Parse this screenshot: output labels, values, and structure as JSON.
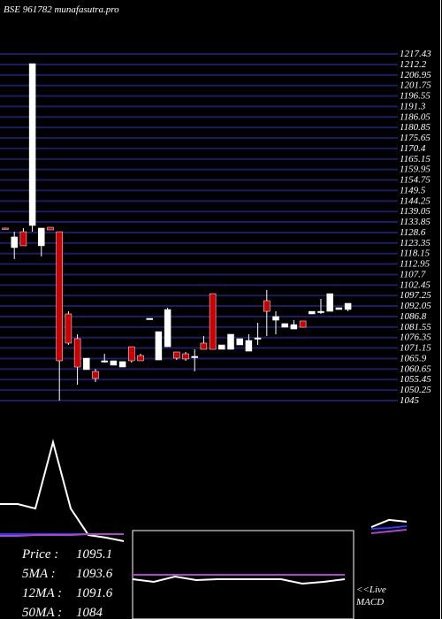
{
  "chart_data": {
    "type": "candlestick",
    "title": "BSE 961782 munafasutra.pro",
    "ylim": [
      1045,
      1217.43
    ],
    "yticks": [
      1045,
      1050.25,
      1055.45,
      1060.65,
      1065.9,
      1071.15,
      1076.35,
      1081.55,
      1086.8,
      1092.05,
      1097.25,
      1102.45,
      1107.7,
      1112.95,
      1118.15,
      1123.35,
      1128.6,
      1133.85,
      1139.05,
      1144.25,
      1149.5,
      1154.75,
      1159.95,
      1165.15,
      1170.4,
      1175.65,
      1180.85,
      1186.05,
      1191.3,
      1196.55,
      1201.75,
      1206.95,
      1212.2,
      1217.43
    ],
    "grid": true,
    "grid_color": "#1c1c66",
    "up_color": "#ffffff",
    "down_color": "#cc0000",
    "open": [
      1130.8,
      1121.1,
      1129,
      1132.1,
      1122,
      1131.2,
      1129,
      1088.1,
      1075.8,
      1060.4,
      1059.5,
      1064.8,
      1062.6,
      1061.7,
      1071.8,
      1067.4,
      1085.9,
      1065.2,
      1071.8,
      1069.2,
      1068.3,
      1067,
      1073.6,
      1098.2,
      1070.5,
      1070.5,
      1072.7,
      1069.6,
      1076.2,
      1094.7,
      1085,
      1081.5,
      1080.6,
      1084.6,
      1088.1,
      1089.4,
      1089.4,
      1090.3,
      1090.3
    ],
    "high": [
      1131,
      1129,
      1130.8,
      1212.6,
      1130.8,
      1131.2,
      1129,
      1089.4,
      1078,
      1066.1,
      1060.8,
      1068.3,
      1064.8,
      1064.4,
      1071.8,
      1068.3,
      1085.9,
      1079.3,
      1091.2,
      1069.2,
      1069.2,
      1070.5,
      1077.1,
      1098.2,
      1072.7,
      1078,
      1075.8,
      1078,
      1083.7,
      1100,
      1089.4,
      1083.3,
      1085,
      1084.6,
      1089.4,
      1095.6,
      1098.2,
      1091.2,
      1093.4
    ],
    "low": [
      1130.4,
      1115.4,
      1122,
      1129,
      1116.7,
      1129.9,
      1045,
      1072.7,
      1052.9,
      1060.4,
      1054.2,
      1063.9,
      1062.6,
      1061.7,
      1063.9,
      1064.8,
      1085.9,
      1065.2,
      1071.8,
      1065.2,
      1064.8,
      1059.5,
      1070.5,
      1070.5,
      1070.5,
      1070.5,
      1072.7,
      1069.6,
      1072.7,
      1077.1,
      1078,
      1081.5,
      1080.6,
      1081.5,
      1088.1,
      1088.1,
      1089.4,
      1090.3,
      1089.4
    ],
    "close": [
      1130.4,
      1126.4,
      1122,
      1212.6,
      1130.8,
      1129.9,
      1064.8,
      1073.6,
      1061.7,
      1066.1,
      1056,
      1064.8,
      1064.8,
      1064.4,
      1064.8,
      1064.8,
      1085.9,
      1079.3,
      1090.3,
      1066.1,
      1065.7,
      1067,
      1070.5,
      1070.5,
      1072.7,
      1078,
      1075.8,
      1074.9,
      1076.2,
      1089.4,
      1086.8,
      1083.3,
      1082.8,
      1081.5,
      1089.4,
      1089.4,
      1098.2,
      1091.2,
      1093.4
    ],
    "indicator": {
      "ylim": [
        0,
        100
      ],
      "series": [
        {
          "color": "#ffffff",
          "values": [
            35.7,
            35.7,
            32.1,
            85.7,
            32.1,
            10.7,
            8.6,
            5.7,
            null,
            null,
            null,
            null,
            null,
            null,
            null,
            null,
            null,
            null,
            null,
            null,
            null,
            17.1,
            22.9,
            21.4
          ]
        },
        {
          "color": "#3333ff",
          "values": [
            11.4,
            11.4,
            11.4,
            11.4,
            11.4,
            11.4,
            11.4,
            11.4,
            null,
            null,
            null,
            null,
            null,
            null,
            null,
            null,
            null,
            null,
            null,
            null,
            null,
            15.7,
            16.4,
            17.9
          ]
        },
        {
          "color": "#b044c8",
          "values": [
            10,
            10,
            10.7,
            10.7,
            10.7,
            11.4,
            11.4,
            11.4,
            null,
            null,
            null,
            null,
            null,
            null,
            null,
            null,
            null,
            null,
            null,
            null,
            null,
            12.1,
            13.6,
            15
          ]
        }
      ]
    },
    "macd": {
      "label": "MACD",
      "live": "<<Live",
      "ylim": [
        0,
        100
      ],
      "series": [
        {
          "color": "#b044c8",
          "values": [
            50,
            50,
            50,
            50,
            50,
            50,
            50,
            50,
            50,
            50,
            50
          ]
        },
        {
          "color": "#ffffff",
          "values": [
            45,
            42,
            48,
            44,
            45,
            45,
            45,
            45,
            40,
            42,
            45
          ]
        }
      ]
    },
    "stats": [
      {
        "label": "Price :",
        "value": 1095.1
      },
      {
        "label": "5MA :",
        "value": 1093.6
      },
      {
        "label": "12MA :",
        "value": 1091.6
      },
      {
        "label": "50MA :",
        "value": 1084
      }
    ]
  }
}
